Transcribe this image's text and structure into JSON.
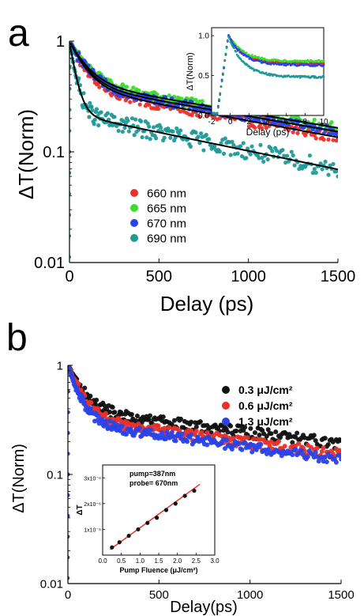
{
  "chart_data": [
    {
      "panel_label": "a",
      "type": "scatter",
      "xlabel": "Delay (ps)",
      "ylabel": "ΔT(Norm)",
      "xlim": [
        0,
        1500
      ],
      "ylim": [
        0.01,
        1
      ],
      "yscale": "log",
      "xticks": [
        0,
        500,
        1000,
        1500
      ],
      "yticks": [
        0.01,
        0.1,
        1
      ],
      "ytick_labels": [
        "0.01",
        "0.1",
        "1"
      ],
      "legend_position": "center-left",
      "series": [
        {
          "name": "660 nm",
          "color": "#e8312a",
          "tau_fast": 85,
          "tau_slow": 1450,
          "amp_fast": 0.62,
          "amp_slow": 0.38,
          "noise": 0.12
        },
        {
          "name": "665 nm",
          "color": "#3bdc2a",
          "tau_fast": 90,
          "tau_slow": 1600,
          "amp_fast": 0.58,
          "amp_slow": 0.42,
          "noise": 0.1
        },
        {
          "name": "670 nm",
          "color": "#2a43e8",
          "tau_fast": 85,
          "tau_slow": 1550,
          "amp_fast": 0.6,
          "amp_slow": 0.4,
          "noise": 0.1
        },
        {
          "name": "690 nm",
          "color": "#1f9a97",
          "tau_fast": 35,
          "tau_slow": 1300,
          "amp_fast": 0.78,
          "amp_slow": 0.22,
          "noise": 0.18
        }
      ],
      "fits": {
        "color": "#000000"
      },
      "inset": {
        "xlabel": "Delay (ps)",
        "ylabel": "ΔT(Norm)",
        "xlim": [
          -2,
          10
        ],
        "ylim": [
          0.0,
          1.1
        ],
        "xticks": [
          -2,
          0,
          2,
          4,
          6,
          8,
          10
        ],
        "yticks": [
          0.0,
          0.5,
          1.0
        ],
        "ytick_labels": [
          "0.0",
          "0.5",
          "1.0"
        ],
        "rise_start": -1.4,
        "peak_x": -0.2,
        "series_end_values": [
          0.65,
          0.68,
          0.63,
          0.48
        ],
        "series_mid_values": [
          0.8,
          0.82,
          0.77,
          0.62
        ]
      }
    },
    {
      "panel_label": "b",
      "type": "scatter",
      "xlabel": "Delay(ps)",
      "ylabel": "ΔT(Norm)",
      "xlim": [
        0,
        1500
      ],
      "ylim": [
        0.01,
        1
      ],
      "yscale": "log",
      "xticks": [
        0,
        500,
        1000,
        1500
      ],
      "yticks": [
        0.01,
        0.1,
        1
      ],
      "ytick_labels": [
        "0.01",
        "0.1",
        "1"
      ],
      "legend_position": "top-right",
      "series": [
        {
          "name": "0.3 μJ/cm²",
          "color": "#111111",
          "tau_fast": 80,
          "tau_slow": 2200,
          "amp_fast": 0.62,
          "amp_slow": 0.38,
          "noise": 0.12
        },
        {
          "name": "0.6 μJ/cm²",
          "color": "#e8312a",
          "tau_fast": 70,
          "tau_slow": 2000,
          "amp_fast": 0.68,
          "amp_slow": 0.32,
          "noise": 0.12
        },
        {
          "name": "1.3 μJ/cm²",
          "color": "#2a43e8",
          "tau_fast": 60,
          "tau_slow": 1900,
          "amp_fast": 0.7,
          "amp_slow": 0.3,
          "noise": 0.1
        }
      ],
      "inset": {
        "type": "scatter",
        "annotation": [
          "pump=387nm",
          "probe= 670nm"
        ],
        "xlabel": "Pump Fluence (μJ/cm²)",
        "ylabel": "ΔT",
        "xlim": [
          0.0,
          3.0
        ],
        "ylim": [
          0,
          3.5e-06
        ],
        "xticks": [
          0.0,
          0.5,
          1.0,
          1.5,
          2.0,
          2.5,
          3.0
        ],
        "xtick_labels": [
          "0.0",
          "0.5",
          "1.0",
          "1.5",
          "2.0",
          "2.5",
          "3.0"
        ],
        "yticks": [
          1e-06,
          2e-06,
          3e-06
        ],
        "ytick_labels": [
          "1x10⁻⁶",
          "2x10⁻⁶",
          "3x10⁻⁶"
        ],
        "points": [
          {
            "x": 0.25,
            "y": 3e-07
          },
          {
            "x": 0.45,
            "y": 5e-07
          },
          {
            "x": 0.7,
            "y": 7.5e-07
          },
          {
            "x": 0.95,
            "y": 1e-06
          },
          {
            "x": 1.2,
            "y": 1.25e-06
          },
          {
            "x": 1.45,
            "y": 1.45e-06
          },
          {
            "x": 1.7,
            "y": 1.75e-06
          },
          {
            "x": 1.95,
            "y": 2e-06
          },
          {
            "x": 2.2,
            "y": 2.3e-06
          },
          {
            "x": 2.45,
            "y": 2.5e-06
          }
        ],
        "fit": {
          "x0": 0.2,
          "y0": 2.2e-07,
          "x1": 2.6,
          "y1": 2.75e-06,
          "color": "#e8312a"
        }
      }
    }
  ]
}
